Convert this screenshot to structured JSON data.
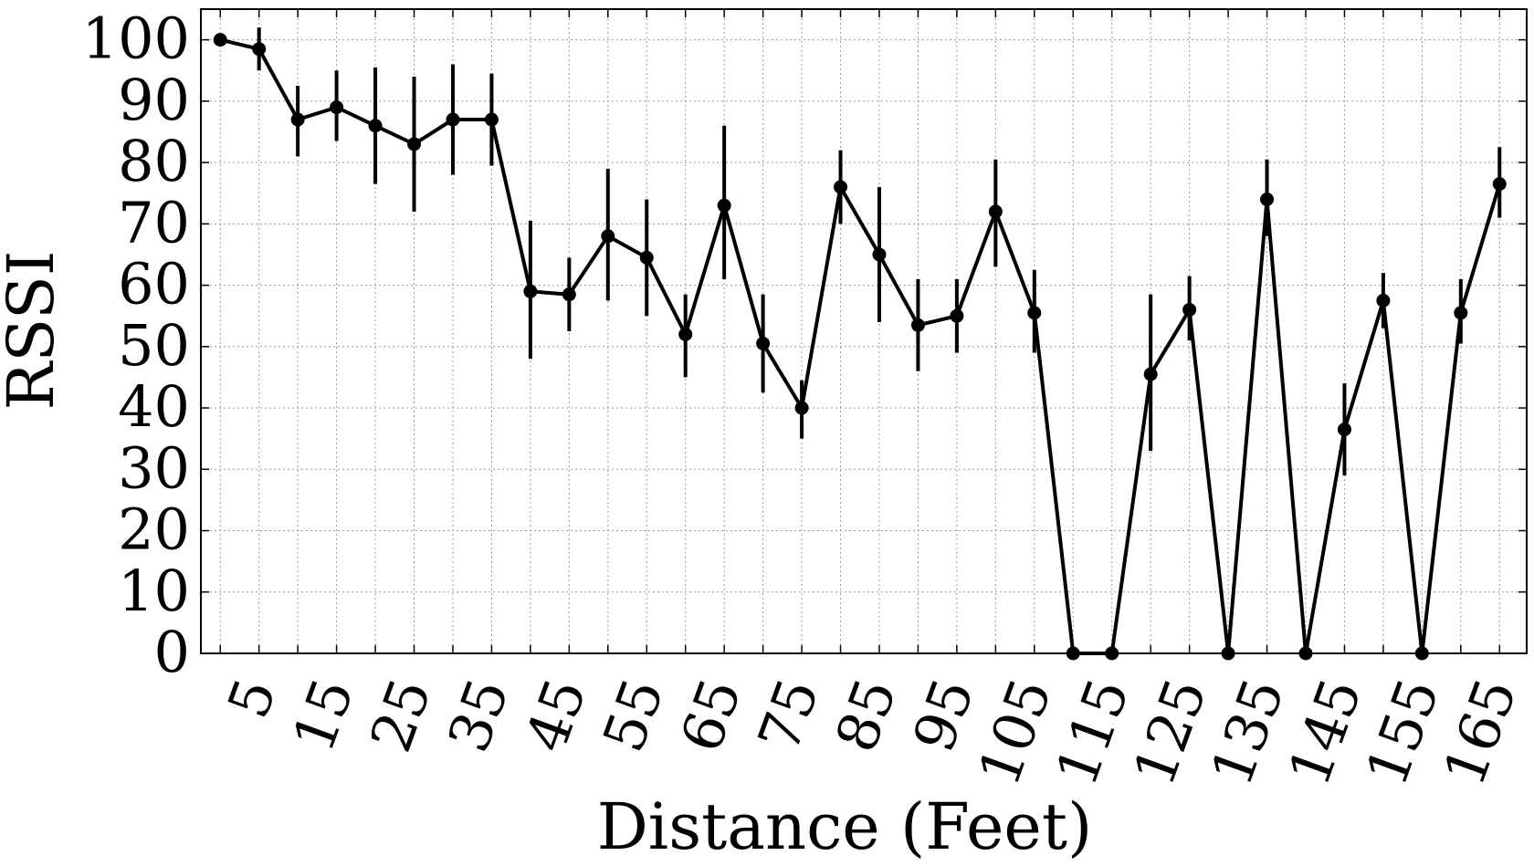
{
  "chart_data": {
    "type": "line",
    "xlabel": "Distance (Feet)",
    "ylabel": "RSSI",
    "xlim": [
      2.5,
      173.5
    ],
    "ylim": [
      0,
      105
    ],
    "grid": true,
    "x_ticks": [
      5,
      10,
      15,
      20,
      25,
      30,
      35,
      40,
      45,
      50,
      55,
      60,
      65,
      70,
      75,
      80,
      85,
      90,
      95,
      100,
      105,
      110,
      115,
      120,
      125,
      130,
      135,
      140,
      145,
      150,
      155,
      160,
      165,
      170
    ],
    "x_tick_labels": [
      5,
      15,
      25,
      35,
      45,
      55,
      65,
      75,
      85,
      95,
      105,
      115,
      125,
      135,
      145,
      155,
      165
    ],
    "y_ticks": [
      0,
      10,
      20,
      30,
      40,
      50,
      60,
      70,
      80,
      90,
      100
    ],
    "series": [
      {
        "color": "#000000",
        "points": [
          {
            "x": 5,
            "y": 100,
            "lo": 100,
            "hi": 100
          },
          {
            "x": 10,
            "y": 98.5,
            "lo": 95,
            "hi": 102
          },
          {
            "x": 15,
            "y": 87,
            "lo": 81,
            "hi": 92.5
          },
          {
            "x": 20,
            "y": 89,
            "lo": 83.5,
            "hi": 95
          },
          {
            "x": 25,
            "y": 86,
            "lo": 76.5,
            "hi": 95.5
          },
          {
            "x": 30,
            "y": 83,
            "lo": 72,
            "hi": 94
          },
          {
            "x": 35,
            "y": 87,
            "lo": 78,
            "hi": 96
          },
          {
            "x": 40,
            "y": 87,
            "lo": 79.5,
            "hi": 94.5
          },
          {
            "x": 45,
            "y": 59,
            "lo": 48,
            "hi": 70.5
          },
          {
            "x": 50,
            "y": 58.5,
            "lo": 52.5,
            "hi": 64.5
          },
          {
            "x": 55,
            "y": 68,
            "lo": 57.5,
            "hi": 79
          },
          {
            "x": 60,
            "y": 64.5,
            "lo": 55,
            "hi": 74
          },
          {
            "x": 65,
            "y": 52,
            "lo": 45,
            "hi": 58.5
          },
          {
            "x": 70,
            "y": 73,
            "lo": 61,
            "hi": 86
          },
          {
            "x": 75,
            "y": 50.5,
            "lo": 42.5,
            "hi": 58.5
          },
          {
            "x": 80,
            "y": 40,
            "lo": 35,
            "hi": 44.5
          },
          {
            "x": 85,
            "y": 76,
            "lo": 70,
            "hi": 82
          },
          {
            "x": 90,
            "y": 65,
            "lo": 54,
            "hi": 76
          },
          {
            "x": 95,
            "y": 53.5,
            "lo": 46,
            "hi": 61
          },
          {
            "x": 100,
            "y": 55,
            "lo": 49,
            "hi": 61
          },
          {
            "x": 105,
            "y": 72,
            "lo": 63,
            "hi": 80.5
          },
          {
            "x": 110,
            "y": 55.5,
            "lo": 49,
            "hi": 62.5
          },
          {
            "x": 115,
            "y": 0,
            "lo": 0,
            "hi": 0
          },
          {
            "x": 120,
            "y": 0,
            "lo": 0,
            "hi": 0
          },
          {
            "x": 125,
            "y": 45.5,
            "lo": 33,
            "hi": 58.5
          },
          {
            "x": 130,
            "y": 56,
            "lo": 51,
            "hi": 61.5
          },
          {
            "x": 135,
            "y": 0,
            "lo": 0,
            "hi": 0
          },
          {
            "x": 140,
            "y": 74,
            "lo": 68,
            "hi": 80.5
          },
          {
            "x": 145,
            "y": 0,
            "lo": 0,
            "hi": 0
          },
          {
            "x": 150,
            "y": 36.5,
            "lo": 29,
            "hi": 44
          },
          {
            "x": 155,
            "y": 57.5,
            "lo": 53,
            "hi": 62
          },
          {
            "x": 160,
            "y": 0,
            "lo": 0,
            "hi": 0
          },
          {
            "x": 165,
            "y": 55.5,
            "lo": 50.5,
            "hi": 61
          },
          {
            "x": 170,
            "y": 76.5,
            "lo": 71,
            "hi": 82.5
          }
        ]
      }
    ]
  }
}
